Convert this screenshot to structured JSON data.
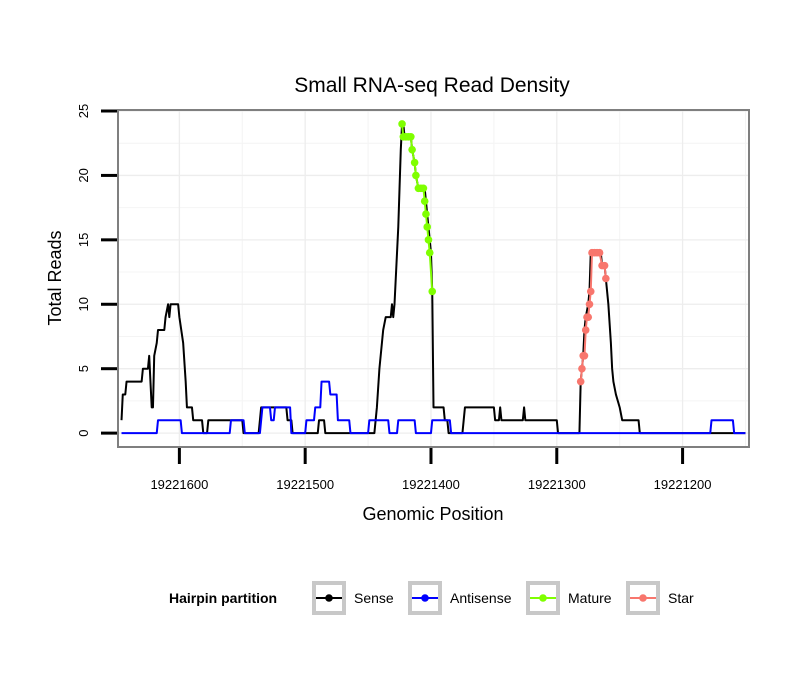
{
  "chart_data": {
    "type": "line",
    "title": "Small RNA-seq Read Density",
    "xlabel": "Genomic Position",
    "ylabel": "Total Reads",
    "xlim": [
      19221648,
      19221148
    ],
    "ylim": [
      -1,
      25
    ],
    "x_reversed": true,
    "x_ticks": [
      19221600,
      19221500,
      19221400,
      19221300,
      19221200
    ],
    "x_tick_labels": [
      "19221600",
      "19221500",
      "19221400",
      "19221300",
      "19221200"
    ],
    "y_ticks": [
      0,
      5,
      10,
      15,
      20,
      25
    ],
    "y_tick_labels": [
      "0",
      "5",
      "10",
      "15",
      "20",
      "25"
    ],
    "grid": true,
    "legend": {
      "title": "Hairpin partition",
      "position": "bottom",
      "entries": [
        "Sense",
        "Antisense",
        "Mature",
        "Star"
      ]
    },
    "series": [
      {
        "name": "Sense",
        "color": "#000000",
        "marker": false,
        "points": [
          [
            19221646,
            1
          ],
          [
            19221645,
            3
          ],
          [
            19221643,
            3
          ],
          [
            19221642,
            4
          ],
          [
            19221630,
            4
          ],
          [
            19221629,
            5
          ],
          [
            19221625,
            5
          ],
          [
            19221624,
            6
          ],
          [
            19221623,
            4
          ],
          [
            19221622,
            2
          ],
          [
            19221621,
            2
          ],
          [
            19221620,
            6
          ],
          [
            19221618,
            7
          ],
          [
            19221617,
            8
          ],
          [
            19221612,
            8
          ],
          [
            19221611,
            9
          ],
          [
            19221609,
            10
          ],
          [
            19221608,
            9
          ],
          [
            19221607,
            10
          ],
          [
            19221601,
            10
          ],
          [
            19221600,
            9
          ],
          [
            19221597,
            7
          ],
          [
            19221595,
            4
          ],
          [
            19221594,
            2
          ],
          [
            19221590,
            2
          ],
          [
            19221589,
            1
          ],
          [
            19221582,
            1
          ],
          [
            19221581,
            0
          ],
          [
            19221578,
            0
          ],
          [
            19221577,
            1
          ],
          [
            19221550,
            1
          ],
          [
            19221549,
            0
          ],
          [
            19221537,
            0
          ],
          [
            19221536,
            1
          ],
          [
            19221535,
            2
          ],
          [
            19221515,
            2
          ],
          [
            19221514,
            1
          ],
          [
            19221511,
            1
          ],
          [
            19221510,
            0
          ],
          [
            19221490,
            0
          ],
          [
            19221489,
            1
          ],
          [
            19221485,
            1
          ],
          [
            19221484,
            0
          ],
          [
            19221445,
            0
          ],
          [
            19221444,
            1
          ],
          [
            19221443,
            2
          ],
          [
            19221441,
            5
          ],
          [
            19221439,
            7
          ],
          [
            19221438,
            8
          ],
          [
            19221436,
            9
          ],
          [
            19221432,
            9
          ],
          [
            19221431,
            10
          ],
          [
            19221430,
            9
          ],
          [
            19221429,
            10
          ],
          [
            19221428,
            12
          ],
          [
            19221426,
            16
          ],
          [
            19221425,
            19
          ],
          [
            19221424,
            22
          ],
          [
            19221423,
            24
          ],
          [
            19221422,
            24
          ],
          [
            19221421,
            23
          ],
          [
            19221416,
            23
          ],
          [
            19221415,
            22
          ],
          [
            19221413,
            21
          ],
          [
            19221412,
            20
          ],
          [
            19221410,
            19
          ],
          [
            19221405,
            19
          ],
          [
            19221404,
            18
          ],
          [
            19221403,
            17
          ],
          [
            19221402,
            16
          ],
          [
            19221401,
            15
          ],
          [
            19221400,
            14
          ],
          [
            19221399,
            11
          ],
          [
            19221398,
            2
          ],
          [
            19221390,
            2
          ],
          [
            19221389,
            1
          ],
          [
            19221387,
            1
          ],
          [
            19221386,
            0
          ],
          [
            19221375,
            0
          ],
          [
            19221374,
            1
          ],
          [
            19221373,
            2
          ],
          [
            19221350,
            2
          ],
          [
            19221349,
            1
          ],
          [
            19221346,
            1
          ],
          [
            19221345,
            2
          ],
          [
            19221344,
            1
          ],
          [
            19221327,
            1
          ],
          [
            19221326,
            2
          ],
          [
            19221325,
            1
          ],
          [
            19221300,
            1
          ],
          [
            19221299,
            0
          ],
          [
            19221282,
            0
          ],
          [
            19221281,
            4
          ],
          [
            19221280,
            5
          ],
          [
            19221279,
            6
          ],
          [
            19221278,
            8
          ],
          [
            19221277,
            9
          ],
          [
            19221275,
            10
          ],
          [
            19221274,
            11
          ],
          [
            19221273,
            14
          ],
          [
            19221265,
            14
          ],
          [
            19221264,
            13
          ],
          [
            19221262,
            13
          ],
          [
            19221261,
            12
          ],
          [
            19221259,
            10
          ],
          [
            19221257,
            7
          ],
          [
            19221256,
            5
          ],
          [
            19221255,
            4
          ],
          [
            19221253,
            3
          ],
          [
            19221250,
            2
          ],
          [
            19221248,
            1
          ],
          [
            19221235,
            1
          ],
          [
            19221234,
            0
          ],
          [
            19221150,
            0
          ]
        ]
      },
      {
        "name": "Antisense",
        "color": "#0000ff",
        "marker": false,
        "points": [
          [
            19221646,
            0
          ],
          [
            19221618,
            0
          ],
          [
            19221617,
            1
          ],
          [
            19221599,
            1
          ],
          [
            19221598,
            0
          ],
          [
            19221560,
            0
          ],
          [
            19221559,
            1
          ],
          [
            19221549,
            1
          ],
          [
            19221548,
            0
          ],
          [
            19221536,
            0
          ],
          [
            19221535,
            1
          ],
          [
            19221534,
            2
          ],
          [
            19221528,
            2
          ],
          [
            19221527,
            1
          ],
          [
            19221525,
            1
          ],
          [
            19221524,
            2
          ],
          [
            19221512,
            2
          ],
          [
            19221511,
            0
          ],
          [
            19221500,
            0
          ],
          [
            19221499,
            1
          ],
          [
            19221493,
            1
          ],
          [
            19221492,
            2
          ],
          [
            19221488,
            2
          ],
          [
            19221487,
            4
          ],
          [
            19221481,
            4
          ],
          [
            19221480,
            3
          ],
          [
            19221475,
            3
          ],
          [
            19221474,
            1
          ],
          [
            19221465,
            1
          ],
          [
            19221464,
            0
          ],
          [
            19221450,
            0
          ],
          [
            19221449,
            1
          ],
          [
            19221434,
            1
          ],
          [
            19221433,
            0
          ],
          [
            19221427,
            0
          ],
          [
            19221426,
            1
          ],
          [
            19221413,
            1
          ],
          [
            19221412,
            0
          ],
          [
            19221400,
            0
          ],
          [
            19221399,
            1
          ],
          [
            19221385,
            1
          ],
          [
            19221384,
            0
          ],
          [
            19221178,
            0
          ],
          [
            19221177,
            1
          ],
          [
            19221160,
            1
          ],
          [
            19221159,
            0
          ],
          [
            19221150,
            0
          ]
        ]
      },
      {
        "name": "Mature",
        "color": "#7fff00",
        "marker": true,
        "points": [
          [
            19221423,
            24
          ],
          [
            19221422,
            23
          ],
          [
            19221420,
            23
          ],
          [
            19221418,
            23
          ],
          [
            19221416,
            23
          ],
          [
            19221415,
            22
          ],
          [
            19221413,
            21
          ],
          [
            19221412,
            20
          ],
          [
            19221410,
            19
          ],
          [
            19221408,
            19
          ],
          [
            19221406,
            19
          ],
          [
            19221405,
            18
          ],
          [
            19221404,
            17
          ],
          [
            19221403,
            16
          ],
          [
            19221402,
            15
          ],
          [
            19221401,
            14
          ],
          [
            19221399,
            11
          ]
        ]
      },
      {
        "name": "Star",
        "color": "#f8766d",
        "marker": true,
        "points": [
          [
            19221281,
            4
          ],
          [
            19221280,
            5
          ],
          [
            19221279,
            6
          ],
          [
            19221278,
            6
          ],
          [
            19221277,
            8
          ],
          [
            19221276,
            9
          ],
          [
            19221275,
            9
          ],
          [
            19221274,
            10
          ],
          [
            19221273,
            11
          ],
          [
            19221272,
            14
          ],
          [
            19221270,
            14
          ],
          [
            19221268,
            14
          ],
          [
            19221266,
            14
          ],
          [
            19221264,
            13
          ],
          [
            19221262,
            13
          ],
          [
            19221261,
            12
          ]
        ]
      }
    ]
  }
}
